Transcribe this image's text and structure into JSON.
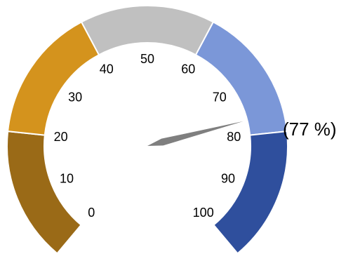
{
  "chart_data": {
    "type": "gauge",
    "min": 0,
    "max": 100,
    "value": 77,
    "value_label": "(77 %)",
    "tick_labels": [
      "0",
      "10",
      "20",
      "30",
      "40",
      "50",
      "60",
      "70",
      "80",
      "90",
      "100"
    ],
    "bands": [
      {
        "from": 0,
        "to": 20,
        "color": "#9a6a17"
      },
      {
        "from": 20,
        "to": 40,
        "color": "#d4931d"
      },
      {
        "from": 40,
        "to": 60,
        "color": "#c0c0c0"
      },
      {
        "from": 60,
        "to": 80,
        "color": "#7b97d8"
      },
      {
        "from": 80,
        "to": 100,
        "color": "#2f4f9d"
      }
    ],
    "needle_color": "#7f7f7f"
  }
}
